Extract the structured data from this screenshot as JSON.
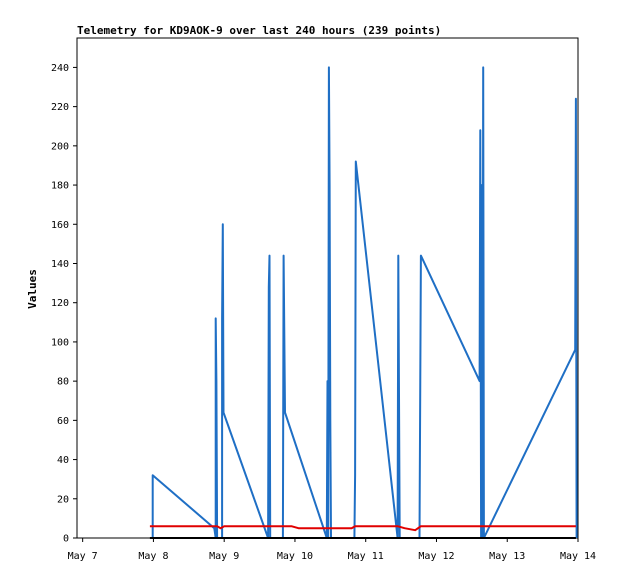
{
  "chart_data": {
    "type": "line",
    "title": "Telemetry for KD9AOK-9 over last 240 hours (239 points)",
    "xlabel": "",
    "ylabel": "Values",
    "xlim": [
      -0.08,
      7.0
    ],
    "ylim": [
      0,
      255
    ],
    "x_tick_values": [
      0,
      1,
      2,
      3,
      4,
      5,
      6,
      7
    ],
    "x_tick_labels": [
      "May 7",
      "May 8",
      "May 9",
      "May 10",
      "May 11",
      "May 12",
      "May 13",
      "May 14"
    ],
    "y_ticks": [
      0,
      20,
      40,
      60,
      80,
      100,
      120,
      140,
      160,
      180,
      200,
      220,
      240
    ],
    "grid": false,
    "legend": "none",
    "x_note": "x = days after May 7 00:00",
    "series": [
      {
        "color": "#1f6fc5",
        "points": [
          [
            0.99,
            0
          ],
          [
            0.99,
            32
          ],
          [
            1.86,
            5
          ],
          [
            1.88,
            0
          ],
          [
            1.88,
            112
          ],
          [
            1.89,
            80
          ],
          [
            1.9,
            0
          ],
          [
            1.97,
            0
          ],
          [
            1.97,
            112
          ],
          [
            1.98,
            160
          ],
          [
            1.99,
            64
          ],
          [
            2.62,
            0
          ],
          [
            2.63,
            128
          ],
          [
            2.64,
            144
          ],
          [
            2.65,
            0
          ],
          [
            2.83,
            0
          ],
          [
            2.84,
            144
          ],
          [
            2.86,
            64
          ],
          [
            3.45,
            0
          ],
          [
            3.46,
            80
          ],
          [
            3.47,
            0
          ],
          [
            3.48,
            240
          ],
          [
            3.49,
            180
          ],
          [
            3.5,
            60
          ],
          [
            3.51,
            0
          ],
          [
            3.84,
            0
          ],
          [
            3.85,
            32
          ],
          [
            3.86,
            192
          ],
          [
            4.45,
            0
          ],
          [
            4.46,
            144
          ],
          [
            4.47,
            72
          ],
          [
            4.48,
            0
          ],
          [
            4.76,
            0
          ],
          [
            4.77,
            72
          ],
          [
            4.78,
            144
          ],
          [
            5.61,
            80
          ],
          [
            5.62,
            208
          ],
          [
            5.63,
            0
          ],
          [
            5.64,
            180
          ],
          [
            5.65,
            0
          ],
          [
            5.66,
            240
          ],
          [
            5.67,
            0
          ],
          [
            6.96,
            96
          ],
          [
            6.97,
            224
          ],
          [
            6.98,
            0
          ]
        ]
      },
      {
        "color": "#e00000",
        "points": [
          [
            0.95,
            6
          ],
          [
            1.9,
            6
          ],
          [
            1.95,
            5
          ],
          [
            2.0,
            6
          ],
          [
            2.85,
            6
          ],
          [
            2.95,
            6
          ],
          [
            3.05,
            5
          ],
          [
            3.45,
            5
          ],
          [
            3.8,
            5
          ],
          [
            3.85,
            6
          ],
          [
            4.45,
            6
          ],
          [
            4.55,
            5
          ],
          [
            4.7,
            4
          ],
          [
            4.78,
            6
          ],
          [
            6.97,
            6
          ]
        ]
      },
      {
        "color": "#000000",
        "points": [
          [
            0.95,
            0
          ],
          [
            6.97,
            0
          ]
        ]
      }
    ]
  }
}
